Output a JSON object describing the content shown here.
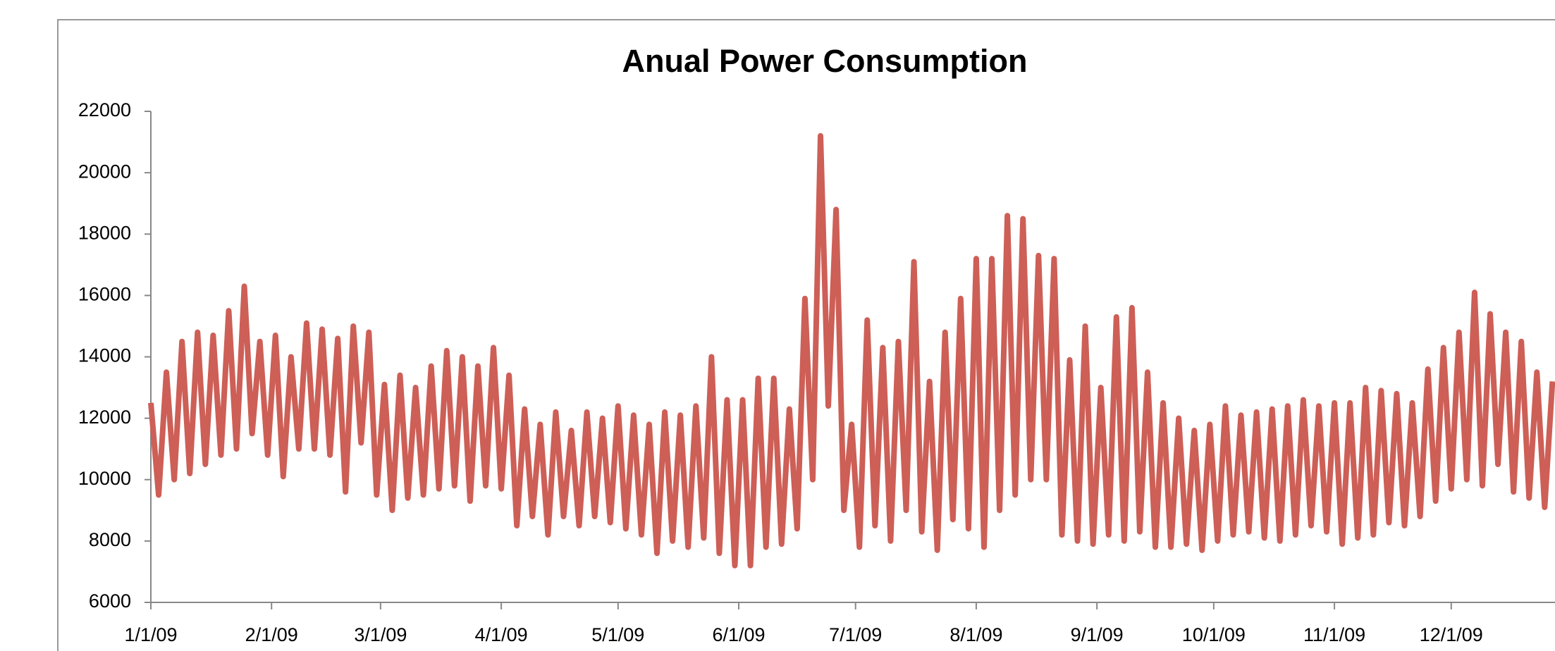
{
  "chart_data": {
    "type": "line",
    "title": "Anual Power Consumption",
    "color": "#cd5f57",
    "x": [
      0,
      2,
      4,
      6,
      8,
      10,
      12,
      14,
      16,
      18,
      20,
      22,
      24,
      26,
      28,
      30,
      32,
      34,
      36,
      38,
      40,
      42,
      44,
      46,
      48,
      50,
      52,
      54,
      56,
      58,
      60,
      62,
      64,
      66,
      68,
      70,
      72,
      74,
      76,
      78,
      80,
      82,
      84,
      86,
      88,
      90,
      92,
      94,
      96,
      98,
      100,
      102,
      104,
      106,
      108,
      110,
      112,
      114,
      116,
      118,
      120,
      122,
      124,
      126,
      128,
      130,
      132,
      134,
      136,
      138,
      140,
      142,
      144,
      146,
      148,
      150,
      152,
      154,
      156,
      158,
      160,
      162,
      164,
      166,
      168,
      170,
      172,
      174,
      176,
      178,
      180,
      182,
      184,
      186,
      188,
      190,
      192,
      194,
      196,
      198,
      200,
      202,
      204,
      206,
      208,
      210,
      212,
      214,
      216,
      218,
      220,
      222,
      224,
      226,
      228,
      230,
      232,
      234,
      236,
      238,
      240,
      242,
      244,
      246,
      248,
      250,
      252,
      254,
      256,
      258,
      260,
      262,
      264,
      266,
      268,
      270,
      272,
      274,
      276,
      278,
      280,
      282,
      284,
      286,
      288,
      290,
      292,
      294,
      296,
      298,
      300,
      302,
      304,
      306,
      308,
      310,
      312,
      314,
      316,
      318,
      320,
      322,
      324,
      326,
      328,
      330,
      332,
      334,
      336,
      338,
      340,
      342,
      344,
      346,
      348,
      350,
      352,
      354,
      356,
      358,
      360
    ],
    "values": [
      12500,
      9500,
      13500,
      10000,
      14500,
      10200,
      14800,
      10500,
      14700,
      10800,
      15500,
      11000,
      16300,
      11500,
      14500,
      10800,
      14700,
      10100,
      14000,
      11000,
      15100,
      11000,
      14900,
      10800,
      14600,
      9600,
      15000,
      11200,
      14800,
      9500,
      13100,
      9000,
      13400,
      9400,
      13000,
      9500,
      13700,
      9700,
      14200,
      9800,
      14000,
      9300,
      13700,
      9800,
      14300,
      9700,
      13400,
      8500,
      12300,
      8800,
      11800,
      8200,
      12200,
      8800,
      11600,
      8500,
      12200,
      8800,
      12000,
      8600,
      12400,
      8400,
      12100,
      8200,
      11800,
      7600,
      12200,
      8000,
      12100,
      7800,
      12400,
      8100,
      14000,
      7600,
      12600,
      7200,
      12600,
      7200,
      13300,
      7800,
      13300,
      7900,
      12300,
      8400,
      15900,
      10000,
      21200,
      12400,
      18800,
      9000,
      11800,
      7800,
      15200,
      8500,
      14300,
      8000,
      14500,
      9000,
      17100,
      8300,
      13200,
      7700,
      14800,
      8700,
      15900,
      8400,
      17200,
      7800,
      17200,
      9000,
      18600,
      9500,
      18500,
      10000,
      17300,
      10000,
      17200,
      8200,
      13900,
      8000,
      15000,
      7900,
      13000,
      8200,
      15300,
      8000,
      15600,
      8300,
      13500,
      7800,
      12500,
      7800,
      12000,
      7900,
      11600,
      7700,
      11800,
      8000,
      12400,
      8200,
      12100,
      8300,
      12200,
      8100,
      12300,
      8000,
      12400,
      8200,
      12600,
      8500,
      12400,
      8300,
      12500,
      7900,
      12500,
      8100,
      13000,
      8200,
      12900,
      8600,
      12800,
      8500,
      12500,
      8800,
      13600,
      9300,
      14300,
      9700,
      14800,
      10000,
      16100,
      9800,
      15400,
      10500,
      14800,
      9600,
      14500,
      9400,
      13500,
      9100,
      13200
    ],
    "xlim": [
      0,
      365
    ],
    "xticks": [
      {
        "value": 0,
        "label": "1/1/09"
      },
      {
        "value": 31,
        "label": "2/1/09"
      },
      {
        "value": 59,
        "label": "3/1/09"
      },
      {
        "value": 90,
        "label": "4/1/09"
      },
      {
        "value": 120,
        "label": "5/1/09"
      },
      {
        "value": 151,
        "label": "6/1/09"
      },
      {
        "value": 181,
        "label": "7/1/09"
      },
      {
        "value": 212,
        "label": "8/1/09"
      },
      {
        "value": 243,
        "label": "9/1/09"
      },
      {
        "value": 273,
        "label": "10/1/09"
      },
      {
        "value": 304,
        "label": "11/1/09"
      },
      {
        "value": 334,
        "label": "12/1/09"
      }
    ],
    "ylim": [
      6000,
      22000
    ],
    "yticks": [
      6000,
      8000,
      10000,
      12000,
      14000,
      16000,
      18000,
      20000,
      22000
    ]
  }
}
